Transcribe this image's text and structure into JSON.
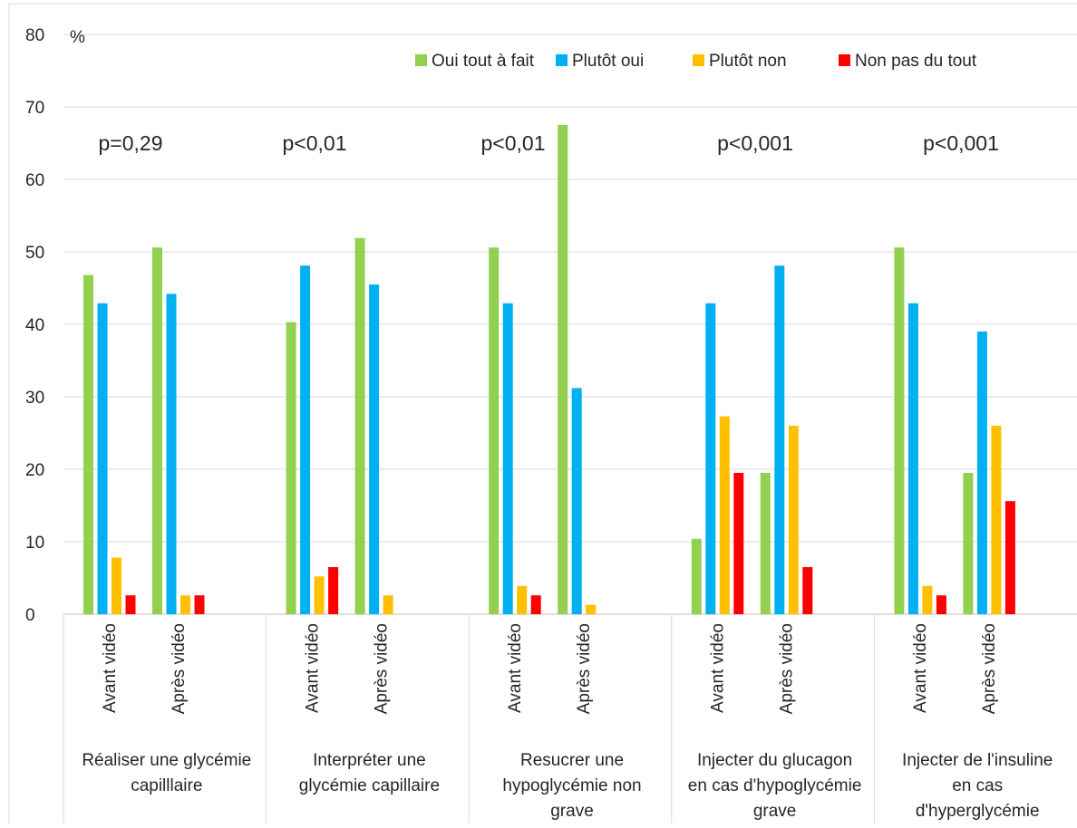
{
  "chart_data": {
    "type": "bar",
    "ylim": [
      0,
      80
    ],
    "yticks": [
      0,
      10,
      20,
      30,
      40,
      50,
      60,
      70,
      80
    ],
    "yunit": "%",
    "grid": true,
    "legend_position": "top-right",
    "groups": [
      {
        "label": [
          "Réaliser une glycémie",
          "capilllaire"
        ],
        "pvalue": "p=0,29"
      },
      {
        "label": [
          "Interpréter une",
          "glycémie capillaire"
        ],
        "pvalue": "p<0,01"
      },
      {
        "label": [
          "Resucrer une",
          "hypoglycémie non",
          "grave"
        ],
        "pvalue": "p<0,01"
      },
      {
        "label": [
          "Injecter du glucagon",
          "en cas d'hypoglycémie",
          "grave"
        ],
        "pvalue": "p<0,001"
      },
      {
        "label": [
          "Injecter de l'insuline",
          "en cas",
          "d'hyperglycémie"
        ],
        "pvalue": "p<0,001"
      }
    ],
    "subcategories": [
      "Avant vidéo",
      "Après vidéo"
    ],
    "series": [
      {
        "name": "Oui tout à fait",
        "color": "#92d050",
        "values": [
          [
            46.8,
            50.6
          ],
          [
            40.3,
            51.9
          ],
          [
            50.6,
            67.5
          ],
          [
            10.4,
            19.5
          ],
          [
            50.6,
            19.5
          ]
        ]
      },
      {
        "name": "Plutôt oui",
        "color": "#00b0f0",
        "values": [
          [
            42.9,
            44.2
          ],
          [
            48.1,
            45.5
          ],
          [
            42.9,
            31.2
          ],
          [
            42.9,
            48.1
          ],
          [
            42.9,
            39.0
          ]
        ]
      },
      {
        "name": "Plutôt non",
        "color": "#ffc000",
        "values": [
          [
            7.8,
            2.6
          ],
          [
            5.2,
            2.6
          ],
          [
            3.9,
            1.3
          ],
          [
            27.3,
            26.0
          ],
          [
            3.9,
            26.0
          ]
        ]
      },
      {
        "name": "Non pas du tout",
        "color": "#ff0000",
        "values": [
          [
            2.6,
            2.6
          ],
          [
            6.5,
            0
          ],
          [
            2.6,
            0
          ],
          [
            19.5,
            6.5
          ],
          [
            2.6,
            15.6
          ]
        ]
      }
    ]
  }
}
